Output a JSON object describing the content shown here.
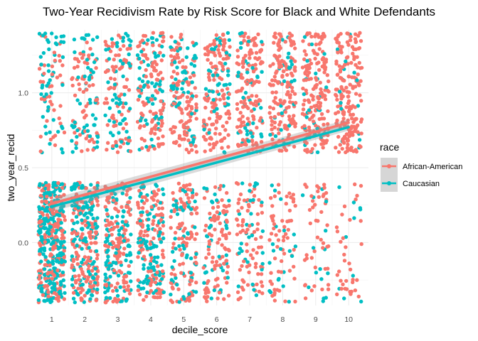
{
  "chart_data": {
    "type": "scatter",
    "title": "Two-Year Recidivism Rate by Risk Score for Black and White Defendants",
    "xlabel": "decile_score",
    "ylabel": "two_year_recid",
    "xlim": [
      0.4,
      10.6
    ],
    "ylim": [
      -0.42,
      1.42
    ],
    "x_ticks": [
      1,
      2,
      3,
      4,
      5,
      6,
      7,
      8,
      9,
      10
    ],
    "x_tick_labels": [
      "1",
      "2",
      "3",
      "4",
      "5",
      "6",
      "7",
      "8",
      "9",
      "10"
    ],
    "y_ticks": [
      0.0,
      0.5,
      1.0
    ],
    "y_tick_labels": [
      "0.0",
      "0.5",
      "1.0"
    ],
    "grid": true,
    "jitter": {
      "x": 0.4,
      "y": 0.4
    },
    "legend": {
      "title": "race",
      "position": "right"
    },
    "series": [
      {
        "name": "African-American",
        "color": "#F8766D",
        "counts_outcome_0": [
          180,
          150,
          125,
          120,
          100,
          90,
          75,
          60,
          45,
          35
        ],
        "counts_outcome_1": [
          40,
          60,
          80,
          100,
          110,
          130,
          140,
          150,
          165,
          185
        ],
        "fit": {
          "method": "lm",
          "x": [
            1,
            10
          ],
          "y": [
            0.26,
            0.8
          ]
        }
      },
      {
        "name": "Caucasian",
        "color": "#00BFC4",
        "counts_outcome_0": [
          260,
          140,
          105,
          90,
          55,
          40,
          30,
          20,
          15,
          10
        ],
        "counts_outcome_1": [
          50,
          55,
          55,
          60,
          55,
          45,
          40,
          30,
          25,
          15
        ],
        "fit": {
          "method": "lm",
          "x": [
            1,
            10
          ],
          "y": [
            0.24,
            0.77
          ]
        }
      }
    ]
  }
}
